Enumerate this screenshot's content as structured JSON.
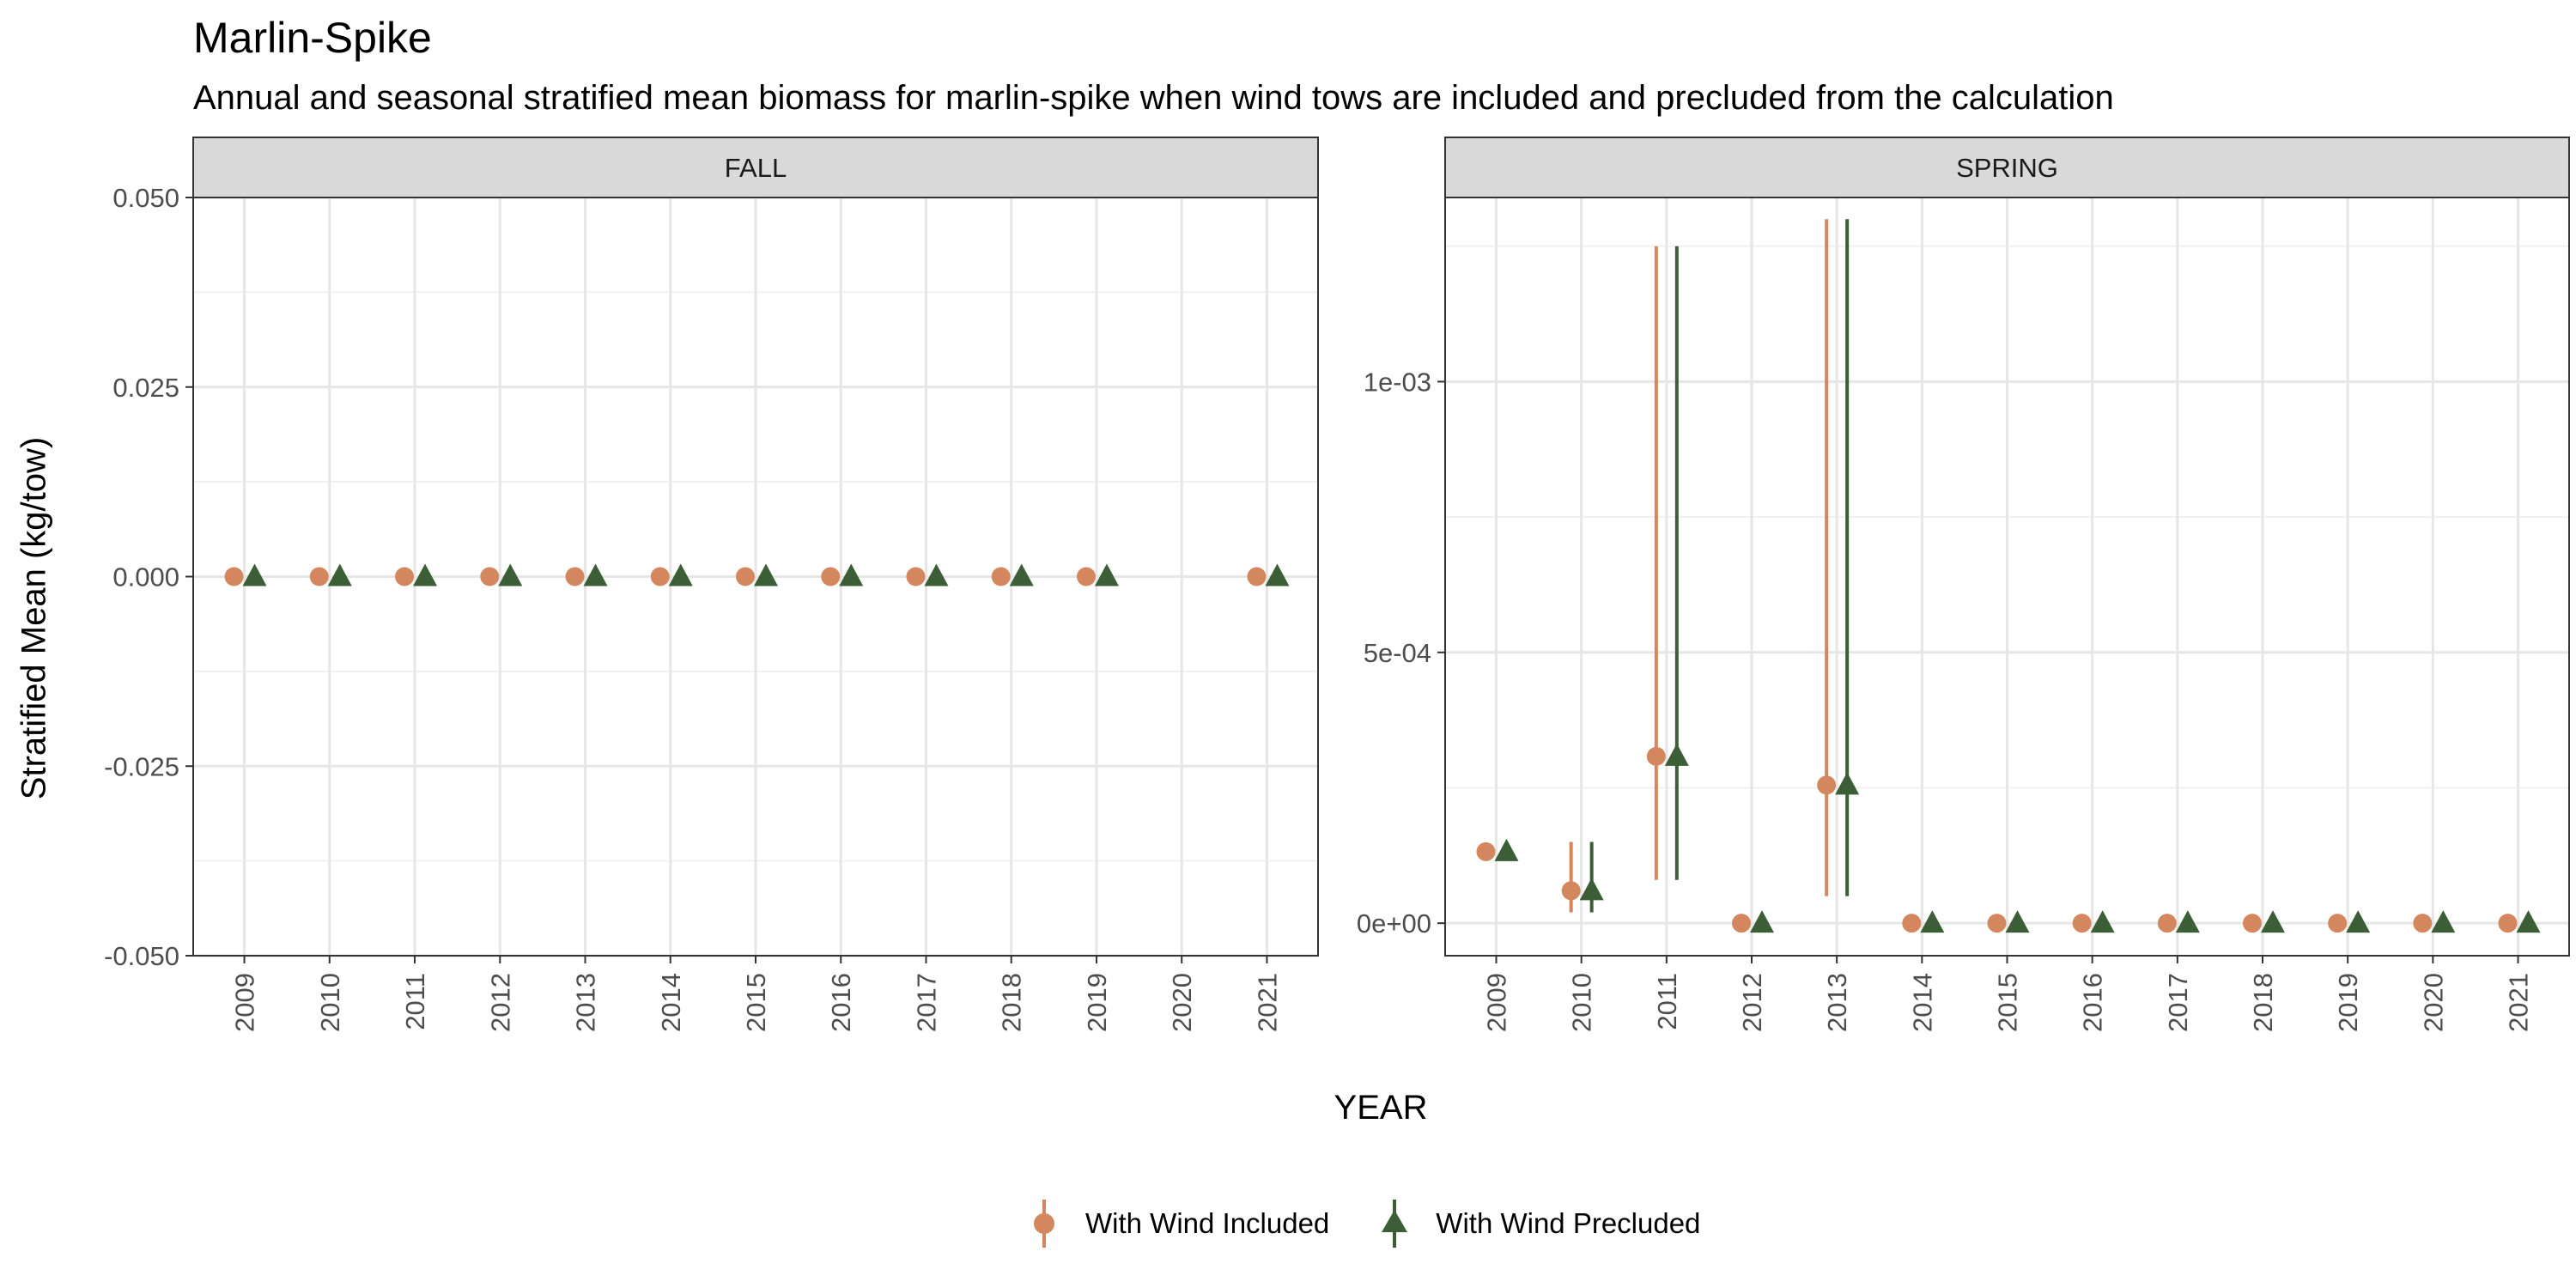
{
  "chart_data": {
    "type": "scatter",
    "title": "Marlin-Spike",
    "subtitle": "Annual and seasonal stratified mean biomass for marlin-spike when wind tows are included and precluded from the calculation",
    "xlabel": "YEAR",
    "ylabel": "Stratified Mean (kg/tow)",
    "grid": true,
    "legend_position": "bottom",
    "series_styles": [
      {
        "name": "With Wind Included",
        "color": "#D4875E",
        "shape": "circle"
      },
      {
        "name": "With Wind Precluded",
        "color": "#3B5E36",
        "shape": "triangle"
      }
    ],
    "panels": [
      {
        "strip": "FALL",
        "x": [
          "2009",
          "2010",
          "2011",
          "2012",
          "2013",
          "2014",
          "2015",
          "2016",
          "2017",
          "2018",
          "2019",
          "2020",
          "2021"
        ],
        "ylim": [
          -0.05,
          0.05
        ],
        "yticks": [
          -0.05,
          -0.025,
          0,
          0.025,
          0.05
        ],
        "yticklabels": [
          "-0.050",
          "-0.025",
          "0.000",
          "0.025",
          "0.050"
        ],
        "series": [
          {
            "name": "With Wind Included",
            "values": [
              0,
              0,
              0,
              0,
              0,
              0,
              0,
              0,
              0,
              0,
              0,
              null,
              0
            ],
            "lower": [
              0,
              0,
              0,
              0,
              0,
              0,
              0,
              0,
              0,
              0,
              0,
              null,
              0
            ],
            "upper": [
              0,
              0,
              0,
              0,
              0,
              0,
              0,
              0,
              0,
              0,
              0,
              null,
              0
            ]
          },
          {
            "name": "With Wind Precluded",
            "values": [
              0,
              0,
              0,
              0,
              0,
              0,
              0,
              0,
              0,
              0,
              0,
              null,
              0
            ],
            "lower": [
              0,
              0,
              0,
              0,
              0,
              0,
              0,
              0,
              0,
              0,
              0,
              null,
              0
            ],
            "upper": [
              0,
              0,
              0,
              0,
              0,
              0,
              0,
              0,
              0,
              0,
              0,
              null,
              0
            ]
          }
        ]
      },
      {
        "strip": "SPRING",
        "x": [
          "2009",
          "2010",
          "2011",
          "2012",
          "2013",
          "2014",
          "2015",
          "2016",
          "2017",
          "2018",
          "2019",
          "2020",
          "2021"
        ],
        "ylim": [
          -6e-05,
          0.00134
        ],
        "yticks": [
          0,
          0.0005,
          0.001
        ],
        "yticklabels": [
          "0e+00",
          "5e-04",
          "1e-03"
        ],
        "series": [
          {
            "name": "With Wind Included",
            "values": [
              0.000132,
              6e-05,
              0.000308,
              0,
              0.000255,
              0,
              0,
              0,
              0,
              0,
              0,
              0,
              0
            ],
            "lower": [
              0.000132,
              2e-05,
              8e-05,
              0,
              5e-05,
              0,
              0,
              0,
              0,
              0,
              0,
              0,
              0
            ],
            "upper": [
              0.000132,
              0.00015,
              0.00125,
              0,
              0.0013,
              0,
              0,
              0,
              0,
              0,
              0,
              0,
              0
            ]
          },
          {
            "name": "With Wind Precluded",
            "values": [
              0.000132,
              6e-05,
              0.000308,
              0,
              0.000255,
              0,
              0,
              0,
              0,
              0,
              0,
              0,
              0
            ],
            "lower": [
              0.000132,
              2e-05,
              8e-05,
              0,
              5e-05,
              0,
              0,
              0,
              0,
              0,
              0,
              0,
              0
            ],
            "upper": [
              0.000132,
              0.00015,
              0.00125,
              0,
              0.0013,
              0,
              0,
              0,
              0,
              0,
              0,
              0,
              0
            ]
          }
        ]
      }
    ]
  }
}
